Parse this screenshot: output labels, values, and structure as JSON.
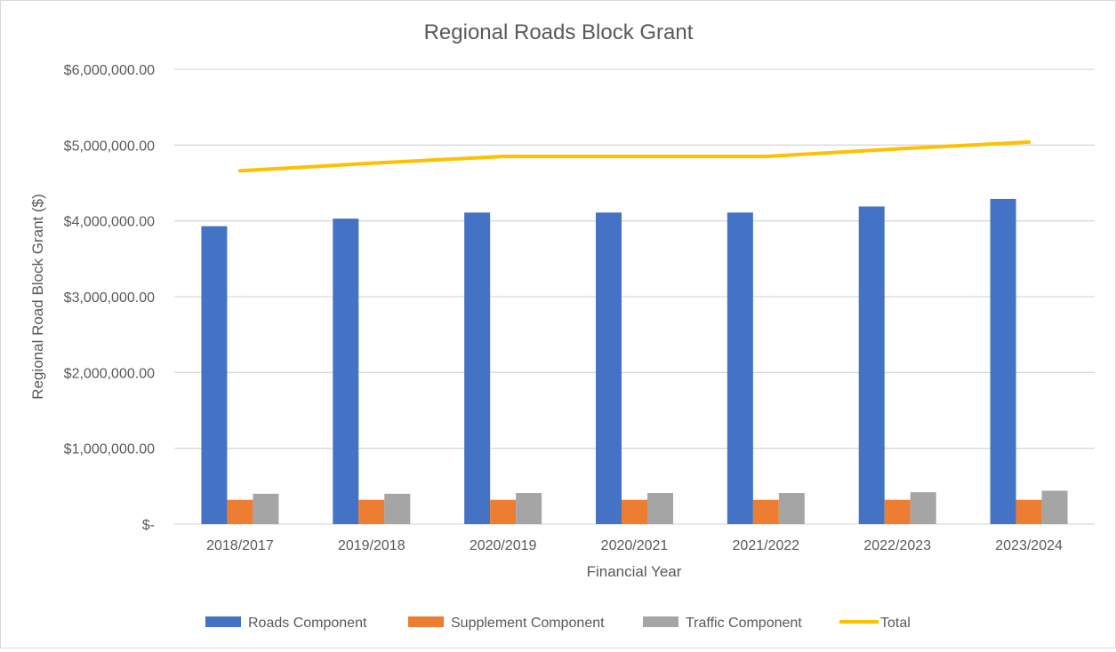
{
  "chart_data": {
    "type": "bar",
    "title": "Regional Roads Block Grant",
    "xlabel": "Financial Year",
    "ylabel": "Regional Road Block Grant ($)",
    "ylim": [
      0,
      6000000
    ],
    "yticks": [
      {
        "value": 0,
        "label": "$-"
      },
      {
        "value": 1000000,
        "label": "$1,000,000.00"
      },
      {
        "value": 2000000,
        "label": "$2,000,000.00"
      },
      {
        "value": 3000000,
        "label": "$3,000,000.00"
      },
      {
        "value": 4000000,
        "label": "$4,000,000.00"
      },
      {
        "value": 5000000,
        "label": "$5,000,000.00"
      },
      {
        "value": 6000000,
        "label": "$6,000,000.00"
      }
    ],
    "grid": true,
    "legend_position": "bottom",
    "categories": [
      "2018/2017",
      "2019/2018",
      "2020/2019",
      "2020/2021",
      "2021/2022",
      "2022/2023",
      "2023/2024"
    ],
    "series": [
      {
        "name": "Roads Component",
        "kind": "bar",
        "color": "#4472c4",
        "values": [
          3930000,
          4030000,
          4110000,
          4110000,
          4110000,
          4190000,
          4290000
        ]
      },
      {
        "name": "Supplement Component",
        "kind": "bar",
        "color": "#ed7d31",
        "values": [
          320000,
          320000,
          320000,
          320000,
          320000,
          320000,
          320000
        ]
      },
      {
        "name": "Traffic Component",
        "kind": "bar",
        "color": "#a5a5a5",
        "values": [
          400000,
          400000,
          410000,
          410000,
          410000,
          420000,
          440000
        ]
      },
      {
        "name": "Total",
        "kind": "line",
        "color": "#ffc000",
        "values": [
          4660000,
          4760000,
          4850000,
          4850000,
          4850000,
          4950000,
          5040000
        ]
      }
    ]
  }
}
